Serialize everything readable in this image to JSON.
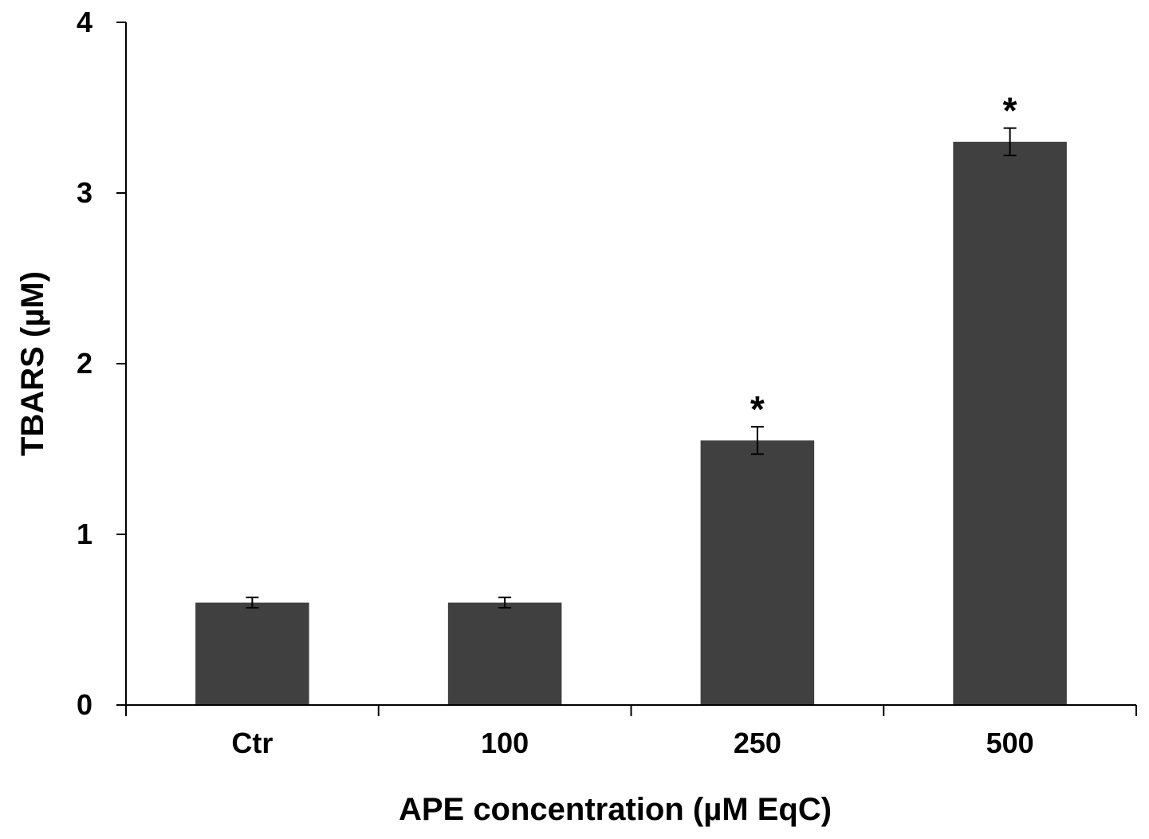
{
  "chart_data": {
    "type": "bar",
    "title": "",
    "xlabel": "APE concentration (µM EqC)",
    "ylabel": "TBARS (µM)",
    "categories": [
      "Ctr",
      "100",
      "250",
      "500"
    ],
    "values": [
      0.6,
      0.6,
      1.55,
      3.3
    ],
    "errors": [
      0.03,
      0.03,
      0.08,
      0.08
    ],
    "annotations": [
      "",
      "",
      "*",
      "*"
    ],
    "ylim": [
      0,
      4
    ],
    "yticks": [
      "0",
      "1",
      "2",
      "3",
      "4"
    ],
    "grid": false,
    "legend": "none",
    "bar_color": "#404040"
  }
}
